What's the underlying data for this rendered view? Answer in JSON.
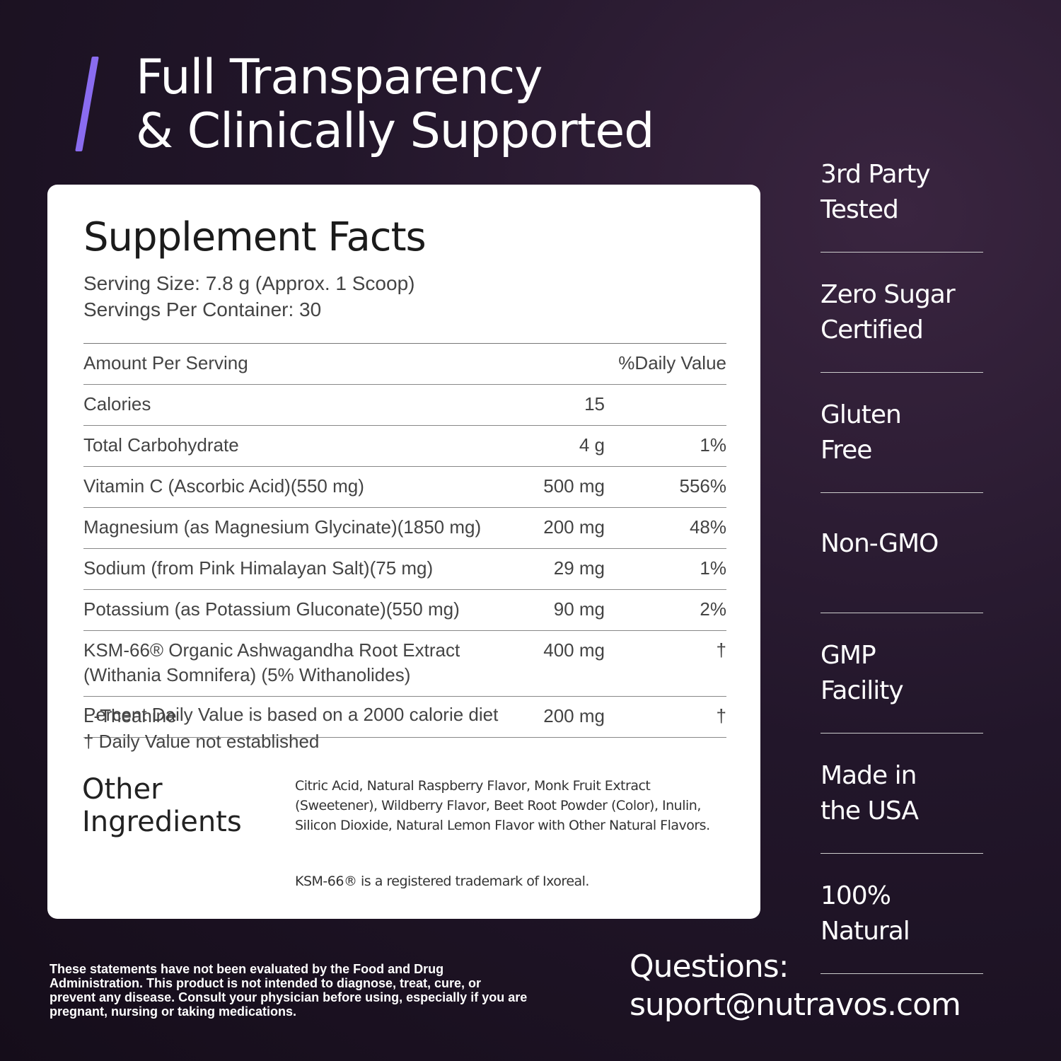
{
  "header": {
    "title_lines": [
      "Full Transparency",
      "& Clinically Supported"
    ]
  },
  "facts": {
    "title": "Supplement Facts",
    "serving_size": "Serving Size: 7.8 g (Approx. 1 Scoop)",
    "servings": "Servings Per Container: 30",
    "columns": [
      "Amount Per Serving",
      "%Daily Value"
    ],
    "rows": [
      [
        "Calories",
        "15"
      ],
      [
        "Total Carbohydrate",
        "4 g",
        "1%"
      ],
      [
        "Vitamin C (Ascorbic Acid)(550 mg)",
        "500 mg",
        "556%"
      ],
      [
        "Magnesium (as Magnesium Glycinate)(1850 mg)",
        "200 mg",
        "48%"
      ],
      [
        "Sodium (from Pink Himalayan Salt)(75 mg)",
        "29 mg",
        "1%"
      ],
      [
        "Potassium (as Potassium Gluconate)(550 mg)",
        "90 mg",
        "2%"
      ],
      [
        "KSM-66® Organic Ashwagandha Root Extract\n(Withania Somnifera) (5% Withanolides)",
        "400 mg",
        "†"
      ],
      [
        "L-Theanine",
        "200 mg",
        "†"
      ]
    ],
    "notes": [
      "Percent Daily Value is based on a 2000 calorie diet",
      "† Daily Value not established"
    ]
  },
  "other": {
    "title": "Other\nIngredients",
    "text": "Citric Acid, Natural Raspberry Flavor, Monk Fruit Extract (Sweetener), Wildberry Flavor, Beet Root Powder (Color), Inulin, Silicon Dioxide, Natural Lemon Flavor with Other Natural Flavors.",
    "trademark": "KSM-66® is a registered trademark of Ixoreal."
  },
  "badges": [
    "3rd Party\nTested",
    "Zero Sugar\nCertified",
    "Gluten\nFree",
    "Non-GMO",
    "GMP\nFacility",
    "Made in\nthe USA",
    "100%\nNatural"
  ],
  "disclaimer": "These statements have not been evaluated by the Food and Drug Administration. This product is not intended to diagnose, treat, cure, or prevent any disease. Consult your physician before using, especially if you are pregnant, nursing or taking medications.",
  "contact": [
    "Questions:",
    "suport@nutravos.com"
  ]
}
